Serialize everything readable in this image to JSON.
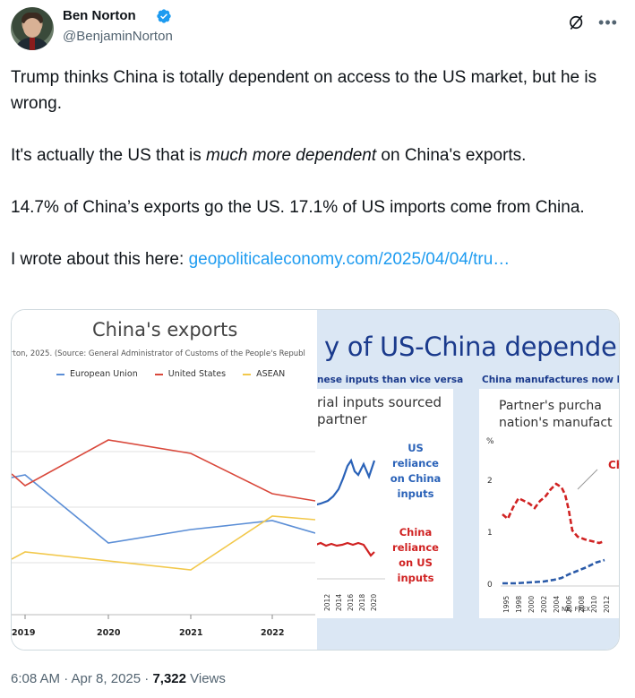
{
  "author": {
    "name": "Ben Norton",
    "handle": "@BenjaminNorton",
    "verified_color": "#1d9bf0"
  },
  "icons": {
    "grok": "grok-icon",
    "more": "more-options-icon"
  },
  "tweet": {
    "p1": "Trump thinks China is totally dependent on access to the US market, but he is wrong.",
    "p2_before": "It's actually the US that is ",
    "p2_em": "much more dependent",
    "p2_after": " on China's exports.",
    "p3": "14.7% of China’s exports go the US. 17.1% of US imports come from China.",
    "p4_before": "I wrote about this here: ",
    "p4_link": "geopoliticaleconomy.com/2025/04/04/tru…"
  },
  "left_chart": {
    "title": "China's exports",
    "source": "rton, 2025. (Source: General Administrator of Customs of the People's Republ",
    "legend": [
      "European Union",
      "United States",
      "ASEAN"
    ],
    "colors": {
      "eu": "#5b8ed6",
      "us": "#d9483b",
      "asean": "#f2c84b"
    },
    "xticks": [
      "2019",
      "2020",
      "2021",
      "2022"
    ]
  },
  "right_image": {
    "title": "y of  US-China dependenci",
    "sub_left": "nese inputs than vice versa",
    "sub_right": "China manufactures now les",
    "panel_a_title_1": "rial inputs sourced",
    "panel_a_title_2": "partner",
    "blue_label": [
      "US",
      "reliance",
      "on China",
      "inputs"
    ],
    "red_label": [
      "China",
      "reliance",
      "on US",
      "inputs"
    ],
    "panel_a_years": [
      "2012",
      "2014",
      "2016",
      "2018",
      "2020"
    ],
    "panel_b_title_1": "Partner's purcha",
    "panel_b_title_2": "nation's manufact",
    "pct_label": "%",
    "yticks": [
      "2",
      "1",
      "0"
    ],
    "china_label": "Ch",
    "nb": "NB: FPEX",
    "panel_b_years": [
      "1995",
      "1998",
      "2000",
      "2002",
      "2004",
      "2006",
      "2008",
      "2010",
      "2012"
    ]
  },
  "meta": {
    "time": "6:08 AM · Apr 8, 2025 · ",
    "views_count": "7,322",
    "views_label": " Views"
  },
  "chart_data": [
    {
      "type": "line",
      "title": "China's exports",
      "x": [
        "2019",
        "2020",
        "2021",
        "2022"
      ],
      "series": [
        {
          "name": "European Union",
          "values": [
            null,
            15.1,
            15.4,
            15.6
          ]
        },
        {
          "name": "United States",
          "values": [
            null,
            17.4,
            17.1,
            16.2
          ]
        },
        {
          "name": "ASEAN",
          "values": [
            null,
            14.7,
            14.5,
            15.7
          ]
        }
      ]
    }
  ]
}
